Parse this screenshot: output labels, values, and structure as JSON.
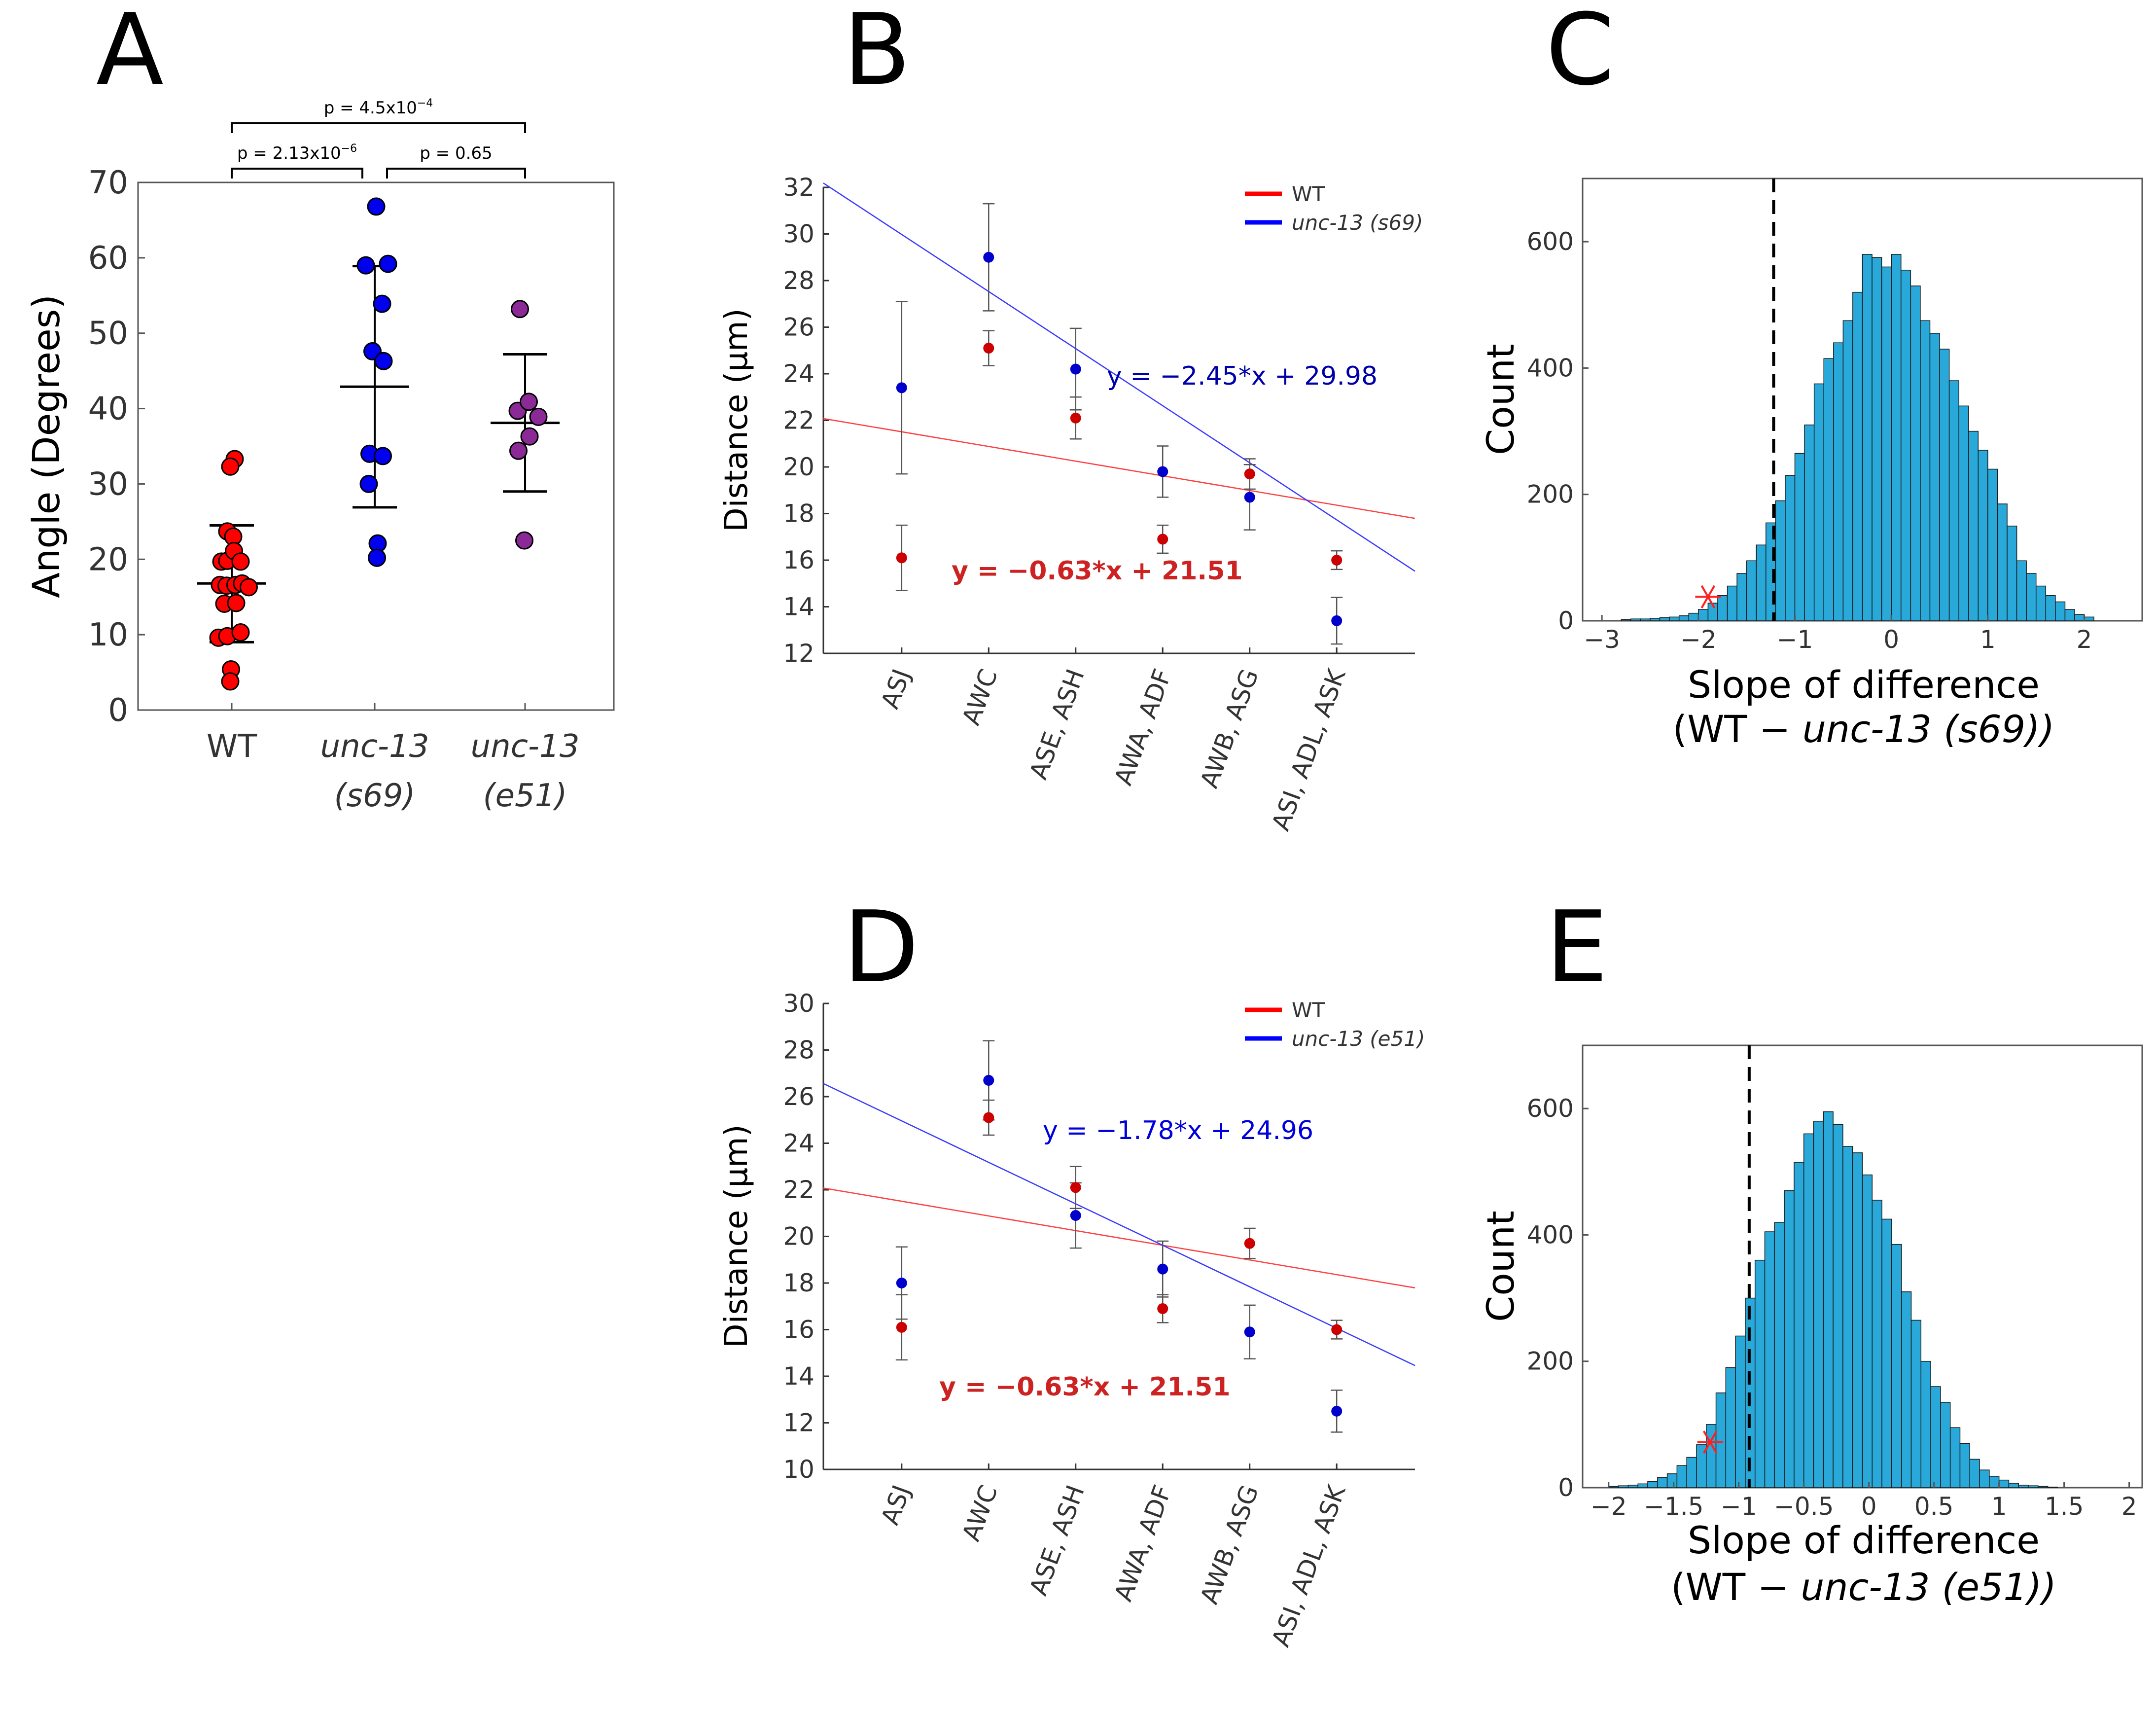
{
  "chart_data": [
    {
      "panel": "A",
      "type": "scatter",
      "ylabel": "Angle (Degrees)",
      "ylim": [
        0,
        70
      ],
      "yticks": [
        0,
        10,
        20,
        30,
        40,
        50,
        60,
        70
      ],
      "categories": [
        {
          "line1": "WT",
          "line2": ""
        },
        {
          "line1": "unc-13",
          "line2": "(s69)"
        },
        {
          "line1": "unc-13",
          "line2": "(e51)"
        }
      ],
      "groups": [
        {
          "name": "WT",
          "color": "#ff0000",
          "mean": 16.8,
          "upper": 24.5,
          "lower": 9.0,
          "points": [
            [
              0.04,
              33.3
            ],
            [
              -0.02,
              32.3
            ],
            [
              -0.06,
              23.7
            ],
            [
              0.02,
              23.0
            ],
            [
              -0.14,
              19.7
            ],
            [
              -0.06,
              19.8
            ],
            [
              0.03,
              21.1
            ],
            [
              0.12,
              19.7
            ],
            [
              -0.16,
              16.6
            ],
            [
              -0.07,
              16.5
            ],
            [
              0.05,
              16.6
            ],
            [
              0.14,
              16.8
            ],
            [
              0.23,
              16.3
            ],
            [
              -0.1,
              14.1
            ],
            [
              0.06,
              14.2
            ],
            [
              -0.18,
              9.6
            ],
            [
              -0.06,
              9.8
            ],
            [
              0.12,
              10.3
            ],
            [
              -0.01,
              5.4
            ],
            [
              -0.02,
              3.8
            ]
          ]
        },
        {
          "name": "unc-13 (s69)",
          "color": "#0000ee",
          "mean": 42.9,
          "upper": 58.9,
          "lower": 26.9,
          "points": [
            [
              -0.12,
              59.0
            ],
            [
              0.18,
              59.2
            ],
            [
              0.1,
              53.9
            ],
            [
              -0.03,
              47.6
            ],
            [
              0.12,
              46.3
            ],
            [
              -0.07,
              34.0
            ],
            [
              0.11,
              33.7
            ],
            [
              -0.08,
              30.0
            ],
            [
              0.04,
              22.1
            ],
            [
              0.03,
              20.2
            ],
            [
              0.02,
              66.8
            ]
          ]
        },
        {
          "name": "unc-13 (e51)",
          "color": "#8b2a96",
          "mean": 38.1,
          "upper": 47.2,
          "lower": 29.0,
          "points": [
            [
              -0.07,
              53.2
            ],
            [
              -0.1,
              39.7
            ],
            [
              0.05,
              40.9
            ],
            [
              0.18,
              38.9
            ],
            [
              -0.09,
              34.4
            ],
            [
              0.06,
              36.3
            ],
            [
              -0.01,
              22.5
            ]
          ]
        }
      ],
      "comparisons": [
        {
          "label": "p = 4.5x10",
          "sup": "−4",
          "from": 0,
          "to": 2,
          "level": 2
        },
        {
          "label": "p = 2.13x10",
          "sup": "−6",
          "from": 0,
          "to": 1,
          "level": 1
        },
        {
          "label": "p = 0.65",
          "sup": "",
          "from": 1,
          "to": 2,
          "level": 1
        }
      ]
    },
    {
      "panel": "B",
      "type": "scatter",
      "ylabel": "Distance (μm)",
      "ylim": [
        12,
        32
      ],
      "yticks": [
        12,
        14,
        16,
        18,
        20,
        22,
        24,
        26,
        28,
        30,
        32
      ],
      "xlim": [
        -0.9,
        5.9
      ],
      "categories": [
        "ASJ",
        "AWC",
        "ASE, ASH",
        "AWA, ADF",
        "AWB, ASG",
        "ASI, ADL, ASK"
      ],
      "legend": [
        {
          "label": "WT",
          "color": "#ff0000",
          "italic": false
        },
        {
          "label": "unc-13",
          "suffix": "(s69)",
          "color": "#0000ff",
          "italic": true
        }
      ],
      "series": [
        {
          "name": "WT",
          "color": "#cc0000",
          "values": [
            16.1,
            25.1,
            22.1,
            16.9,
            19.7,
            16.0
          ],
          "err": [
            1.4,
            0.75,
            0.9,
            0.6,
            0.65,
            0.4
          ],
          "fit": {
            "slope": -0.63,
            "intercept": 21.51,
            "label": "y = −0.63*x + 21.51",
            "color": "#cc2222"
          }
        },
        {
          "name": "unc-13 (s69)",
          "color": "#0000cc",
          "values": [
            23.4,
            29.0,
            24.2,
            19.8,
            18.7,
            13.4
          ],
          "err": [
            3.7,
            2.3,
            1.75,
            1.1,
            1.4,
            1.0
          ],
          "fit": {
            "slope": -2.45,
            "intercept": 29.98,
            "label": "y = −2.45*x + 29.98",
            "color": "#0000aa"
          }
        }
      ]
    },
    {
      "panel": "C",
      "type": "bar",
      "subtype": "histogram",
      "ylabel": "Count",
      "xlabel_line1": "Slope of difference",
      "xlabel_line2_prefix": "(WT − ",
      "xlabel_line2_italic": "unc-13 (s69))",
      "xlim": [
        -3.2,
        2.6
      ],
      "ylim": [
        0,
        700
      ],
      "xticks": [
        -3,
        -2,
        -1,
        0,
        1,
        2
      ],
      "yticks": [
        0,
        200,
        400,
        600
      ],
      "bin_start": -2.8,
      "bin_width": 0.1,
      "counts": [
        2,
        3,
        3,
        4,
        5,
        6,
        8,
        12,
        18,
        28,
        40,
        55,
        75,
        95,
        120,
        155,
        190,
        230,
        265,
        310,
        375,
        415,
        440,
        475,
        520,
        580,
        575,
        560,
        580,
        555,
        530,
        475,
        455,
        430,
        380,
        340,
        300,
        270,
        240,
        185,
        150,
        95,
        75,
        55,
        40,
        30,
        18,
        10,
        6
      ],
      "bar_color": "#29a9d9",
      "threshold": -1.22,
      "observed": {
        "x": -1.9,
        "y": 38
      }
    },
    {
      "panel": "D",
      "type": "scatter",
      "ylabel": "Distance (μm)",
      "ylim": [
        10,
        30
      ],
      "yticks": [
        10,
        12,
        14,
        16,
        18,
        20,
        22,
        24,
        26,
        28,
        30
      ],
      "xlim": [
        -0.9,
        5.9
      ],
      "categories": [
        "ASJ",
        "AWC",
        "ASE, ASH",
        "AWA, ADF",
        "AWB, ASG",
        "ASI, ADL, ASK"
      ],
      "legend": [
        {
          "label": "WT",
          "color": "#ff0000",
          "italic": false
        },
        {
          "label": "unc-13",
          "suffix": "(e51)",
          "color": "#0000ff",
          "italic": true
        }
      ],
      "series": [
        {
          "name": "WT",
          "color": "#cc0000",
          "values": [
            16.1,
            25.1,
            22.1,
            16.9,
            19.7,
            16.0
          ],
          "err": [
            1.4,
            0.75,
            0.9,
            0.6,
            0.65,
            0.4
          ],
          "fit": {
            "slope": -0.63,
            "intercept": 21.51,
            "label": "y = −0.63*x + 21.51",
            "color": "#cc2222"
          }
        },
        {
          "name": "unc-13 (e51)",
          "color": "#0000cc",
          "values": [
            18.0,
            26.7,
            20.9,
            18.6,
            15.9,
            12.5
          ],
          "err": [
            1.55,
            1.7,
            1.4,
            1.2,
            1.15,
            0.9
          ],
          "fit": {
            "slope": -1.78,
            "intercept": 24.96,
            "label": "y = −1.78*x + 24.96",
            "color": "#0000dd"
          }
        }
      ]
    },
    {
      "panel": "E",
      "type": "bar",
      "subtype": "histogram",
      "ylabel": "Count",
      "xlabel_line1": "Slope of difference",
      "xlabel_line2_prefix": "(WT − ",
      "xlabel_line2_italic": "unc-13 (e51))",
      "xlim": [
        -2.2,
        2.1
      ],
      "ylim": [
        0,
        700
      ],
      "xticks": [
        -2,
        -1.5,
        -1,
        -0.5,
        0,
        0.5,
        1,
        1.5,
        2
      ],
      "yticks": [
        0,
        200,
        400,
        600
      ],
      "bin_start": -2.0,
      "bin_width": 0.075,
      "counts": [
        2,
        3,
        4,
        6,
        10,
        16,
        22,
        35,
        48,
        68,
        100,
        150,
        190,
        240,
        300,
        360,
        405,
        420,
        470,
        515,
        560,
        580,
        595,
        575,
        540,
        530,
        495,
        455,
        425,
        385,
        310,
        265,
        200,
        160,
        135,
        95,
        70,
        45,
        28,
        18,
        12,
        7,
        4,
        3,
        2,
        1
      ],
      "bar_color": "#29a9d9",
      "threshold": -0.92,
      "observed": {
        "x": -1.22,
        "y": 72
      }
    }
  ]
}
